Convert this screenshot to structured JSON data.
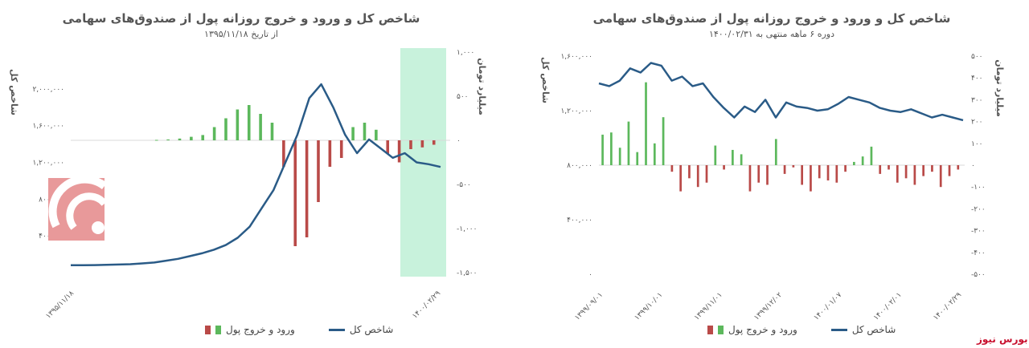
{
  "brand": {
    "text": "بورس نیوز"
  },
  "legend": {
    "index": "شاخص کل",
    "flows": "ورود و خروج پول"
  },
  "colors": {
    "index_line": "#2a5b87",
    "inflow": "#5cb85c",
    "outflow": "#b94a48",
    "highlight": "#c8f2dc",
    "logo": "#e8999a"
  },
  "chart_data": [
    {
      "type": "line",
      "title": "شاخص کل و ورود و خروج روزانه پول از صندوق‌های سهامی",
      "subtitle": "از تاریخ ۱۳۹۵/۱۱/۱۸",
      "ylabel": "شاخص کل",
      "y2label": "میلیارد تومان",
      "ylim": [
        0,
        2400000
      ],
      "y2lim": [
        -1500,
        1000
      ],
      "yticks": [
        "۴۰۰,۰۰۰",
        "۸۰۰,۰۰۰",
        "۱,۲۰۰,۰۰۰",
        "۱,۶۰۰,۰۰۰",
        "۲,۰۰۰,۰۰۰"
      ],
      "y2ticks": [
        "۱,۰۰۰",
        "۵۰۰",
        "۰",
        "-۵۰۰",
        "-۱,۰۰۰",
        "-۱,۵۰۰"
      ],
      "xticks": [
        "۱۳۹۵/۱۱/۱۸",
        "۱۴۰۰/۰۲/۲۹"
      ],
      "highlight_note": "last six months shaded",
      "index_series": [
        80000,
        80000,
        82000,
        85000,
        88000,
        92000,
        100000,
        110000,
        130000,
        150000,
        180000,
        210000,
        250000,
        300000,
        380000,
        500000,
        700000,
        900000,
        1200000,
        1500000,
        1900000,
        2050000,
        1800000,
        1500000,
        1300000,
        1450000,
        1350000,
        1250000,
        1300000,
        1200000,
        1180000,
        1150000
      ],
      "flow_series": [
        0,
        0,
        0,
        0,
        0,
        0,
        0,
        5,
        10,
        20,
        40,
        60,
        150,
        250,
        350,
        400,
        300,
        200,
        -300,
        -1200,
        -1100,
        -700,
        -300,
        -200,
        150,
        200,
        120,
        -150,
        -250,
        -100,
        -80,
        -50
      ]
    },
    {
      "type": "line",
      "title": "شاخص کل و ورود و خروج روزانه پول از صندوق‌های سهامی",
      "subtitle": "دوره ۶ ماهه منتهی به ۱۴۰۰/۰۲/۳۱",
      "ylabel": "شاخص کل",
      "y2label": "میلیارد تومان",
      "ylim": [
        0,
        1600000
      ],
      "y2lim": [
        -500,
        500
      ],
      "yticks": [
        "۰",
        "۴۰۰,۰۰۰",
        "۸۰۰,۰۰۰",
        "۱,۲۰۰,۰۰۰",
        "۱,۶۰۰,۰۰۰"
      ],
      "y2ticks": [
        "۵۰۰",
        "۴۰۰",
        "۳۰۰",
        "۲۰۰",
        "۱۰۰",
        "۰",
        "-۱۰۰",
        "-۲۰۰",
        "-۳۰۰",
        "-۴۰۰",
        "-۵۰۰"
      ],
      "xticks": [
        "۱۳۹۹/۰۹/۰۱",
        "۱۳۹۹/۱۰/۰۱",
        "۱۳۹۹/۱۱/۰۱",
        "۱۳۹۹/۱۲/۰۲",
        "۱۴۰۰/۰۱/۰۷",
        "۱۴۰۰/۰۲/۰۱",
        "۱۴۰۰/۰۲/۲۹"
      ],
      "index_series": [
        1400000,
        1380000,
        1420000,
        1510000,
        1480000,
        1550000,
        1530000,
        1420000,
        1450000,
        1380000,
        1400000,
        1300000,
        1220000,
        1150000,
        1230000,
        1190000,
        1280000,
        1150000,
        1260000,
        1230000,
        1220000,
        1200000,
        1210000,
        1250000,
        1300000,
        1280000,
        1260000,
        1220000,
        1200000,
        1190000,
        1210000,
        1180000,
        1150000,
        1170000,
        1150000,
        1130000
      ],
      "flow_series": [
        140,
        150,
        80,
        200,
        60,
        380,
        100,
        220,
        -30,
        -120,
        -60,
        -100,
        -80,
        90,
        -20,
        70,
        50,
        -120,
        -80,
        -90,
        120,
        -40,
        -10,
        -90,
        -120,
        -60,
        -70,
        -80,
        -30,
        15,
        40,
        85,
        -40,
        -20,
        -80,
        -60,
        -90,
        -50,
        -30,
        -100,
        -50,
        -20
      ]
    }
  ]
}
